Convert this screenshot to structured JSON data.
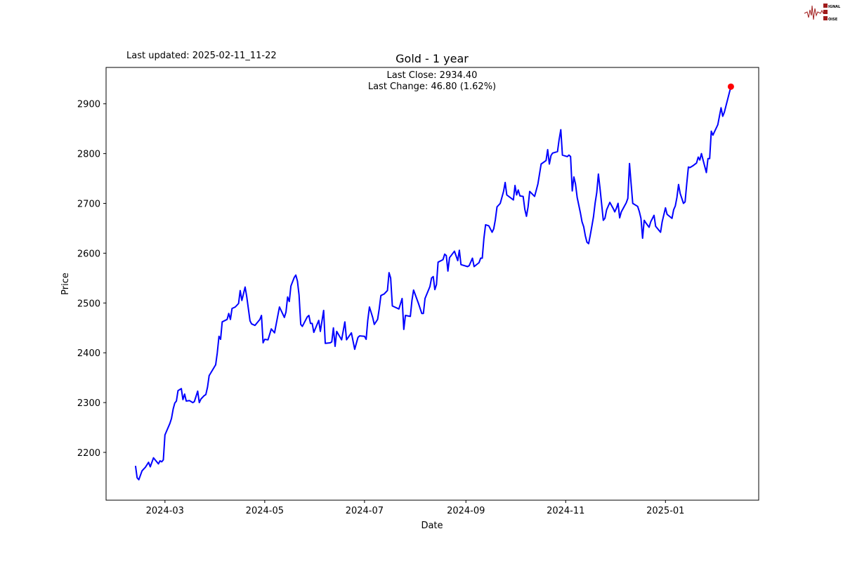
{
  "header": {
    "last_updated": "Last updated: 2025-02-11_11-22",
    "logo_text": "SIGNAL 2 NOISE"
  },
  "chart_data": {
    "type": "line",
    "title": "Gold - 1 year",
    "xlabel": "Date",
    "ylabel": "Price",
    "annotation_close": "Last Close: 2934.40",
    "annotation_change": "Last Change: 46.80 (1.62%)",
    "last_close": 2934.4,
    "line_color": "#0000ff",
    "last_point_color": "#ff0000",
    "grid": false,
    "xlim": [
      "2024-01-25",
      "2025-02-27"
    ],
    "ylim": [
      2104,
      2973
    ],
    "x_ticks": [
      "2024-03",
      "2024-05",
      "2024-07",
      "2024-09",
      "2024-11",
      "2025-01"
    ],
    "y_ticks": [
      2200,
      2300,
      2400,
      2500,
      2600,
      2700,
      2800,
      2900
    ],
    "points": [
      [
        "2024-02-12",
        2173
      ],
      [
        "2024-02-13",
        2149
      ],
      [
        "2024-02-14",
        2145
      ],
      [
        "2024-02-16",
        2163
      ],
      [
        "2024-02-18",
        2170
      ],
      [
        "2024-02-20",
        2180
      ],
      [
        "2024-02-21",
        2171
      ],
      [
        "2024-02-23",
        2189
      ],
      [
        "2024-02-26",
        2177
      ],
      [
        "2024-02-27",
        2183
      ],
      [
        "2024-02-28",
        2181
      ],
      [
        "2024-02-29",
        2185
      ],
      [
        "2024-03-01",
        2235
      ],
      [
        "2024-03-04",
        2258
      ],
      [
        "2024-03-05",
        2268
      ],
      [
        "2024-03-06",
        2287
      ],
      [
        "2024-03-07",
        2299
      ],
      [
        "2024-03-08",
        2303
      ],
      [
        "2024-03-09",
        2324
      ],
      [
        "2024-03-11",
        2328
      ],
      [
        "2024-03-12",
        2306
      ],
      [
        "2024-03-13",
        2317
      ],
      [
        "2024-03-14",
        2303
      ],
      [
        "2024-03-16",
        2304
      ],
      [
        "2024-03-18",
        2300
      ],
      [
        "2024-03-19",
        2302
      ],
      [
        "2024-03-21",
        2323
      ],
      [
        "2024-03-22",
        2300
      ],
      [
        "2024-03-23",
        2307
      ],
      [
        "2024-03-25",
        2314
      ],
      [
        "2024-03-26",
        2316
      ],
      [
        "2024-03-27",
        2331
      ],
      [
        "2024-03-28",
        2354
      ],
      [
        "2024-04-01",
        2376
      ],
      [
        "2024-04-02",
        2400
      ],
      [
        "2024-04-03",
        2433
      ],
      [
        "2024-04-04",
        2427
      ],
      [
        "2024-04-05",
        2462
      ],
      [
        "2024-04-08",
        2467
      ],
      [
        "2024-04-09",
        2479
      ],
      [
        "2024-04-10",
        2467
      ],
      [
        "2024-04-11",
        2489
      ],
      [
        "2024-04-13",
        2492
      ],
      [
        "2024-04-15",
        2499
      ],
      [
        "2024-04-16",
        2525
      ],
      [
        "2024-04-17",
        2505
      ],
      [
        "2024-04-19",
        2532
      ],
      [
        "2024-04-20",
        2513
      ],
      [
        "2024-04-22",
        2464
      ],
      [
        "2024-04-23",
        2458
      ],
      [
        "2024-04-25",
        2455
      ],
      [
        "2024-04-28",
        2467
      ],
      [
        "2024-04-29",
        2475
      ],
      [
        "2024-04-30",
        2420
      ],
      [
        "2024-05-01",
        2427
      ],
      [
        "2024-05-03",
        2426
      ],
      [
        "2024-05-05",
        2448
      ],
      [
        "2024-05-07",
        2440
      ],
      [
        "2024-05-10",
        2492
      ],
      [
        "2024-05-13",
        2471
      ],
      [
        "2024-05-14",
        2482
      ],
      [
        "2024-05-15",
        2512
      ],
      [
        "2024-05-16",
        2503
      ],
      [
        "2024-05-17",
        2534
      ],
      [
        "2024-05-19",
        2551
      ],
      [
        "2024-05-20",
        2556
      ],
      [
        "2024-05-21",
        2544
      ],
      [
        "2024-05-22",
        2516
      ],
      [
        "2024-05-23",
        2457
      ],
      [
        "2024-05-24",
        2453
      ],
      [
        "2024-05-27",
        2472
      ],
      [
        "2024-05-28",
        2475
      ],
      [
        "2024-05-29",
        2459
      ],
      [
        "2024-05-30",
        2459
      ],
      [
        "2024-05-31",
        2441
      ],
      [
        "2024-06-03",
        2465
      ],
      [
        "2024-06-04",
        2443
      ],
      [
        "2024-06-06",
        2485
      ],
      [
        "2024-06-07",
        2419
      ],
      [
        "2024-06-10",
        2420
      ],
      [
        "2024-06-11",
        2422
      ],
      [
        "2024-06-12",
        2450
      ],
      [
        "2024-06-13",
        2413
      ],
      [
        "2024-06-14",
        2443
      ],
      [
        "2024-06-17",
        2426
      ],
      [
        "2024-06-19",
        2462
      ],
      [
        "2024-06-20",
        2426
      ],
      [
        "2024-06-23",
        2440
      ],
      [
        "2024-06-25",
        2407
      ],
      [
        "2024-06-27",
        2431
      ],
      [
        "2024-06-28",
        2434
      ],
      [
        "2024-07-01",
        2433
      ],
      [
        "2024-07-02",
        2427
      ],
      [
        "2024-07-03",
        2465
      ],
      [
        "2024-07-04",
        2492
      ],
      [
        "2024-07-06",
        2471
      ],
      [
        "2024-07-07",
        2457
      ],
      [
        "2024-07-09",
        2467
      ],
      [
        "2024-07-10",
        2488
      ],
      [
        "2024-07-11",
        2515
      ],
      [
        "2024-07-13",
        2518
      ],
      [
        "2024-07-15",
        2525
      ],
      [
        "2024-07-16",
        2561
      ],
      [
        "2024-07-17",
        2550
      ],
      [
        "2024-07-18",
        2494
      ],
      [
        "2024-07-22",
        2488
      ],
      [
        "2024-07-24",
        2509
      ],
      [
        "2024-07-25",
        2447
      ],
      [
        "2024-07-26",
        2475
      ],
      [
        "2024-07-29",
        2473
      ],
      [
        "2024-07-30",
        2505
      ],
      [
        "2024-07-31",
        2526
      ],
      [
        "2024-08-03",
        2499
      ],
      [
        "2024-08-05",
        2479
      ],
      [
        "2024-08-06",
        2479
      ],
      [
        "2024-08-07",
        2509
      ],
      [
        "2024-08-10",
        2533
      ],
      [
        "2024-08-11",
        2550
      ],
      [
        "2024-08-12",
        2553
      ],
      [
        "2024-08-13",
        2527
      ],
      [
        "2024-08-14",
        2537
      ],
      [
        "2024-08-15",
        2582
      ],
      [
        "2024-08-18",
        2587
      ],
      [
        "2024-08-19",
        2598
      ],
      [
        "2024-08-20",
        2595
      ],
      [
        "2024-08-21",
        2564
      ],
      [
        "2024-08-22",
        2591
      ],
      [
        "2024-08-25",
        2604
      ],
      [
        "2024-08-27",
        2585
      ],
      [
        "2024-08-28",
        2606
      ],
      [
        "2024-08-29",
        2577
      ],
      [
        "2024-09-02",
        2573
      ],
      [
        "2024-09-03",
        2575
      ],
      [
        "2024-09-05",
        2590
      ],
      [
        "2024-09-06",
        2573
      ],
      [
        "2024-09-09",
        2581
      ],
      [
        "2024-09-10",
        2590
      ],
      [
        "2024-09-11",
        2590
      ],
      [
        "2024-09-12",
        2629
      ],
      [
        "2024-09-13",
        2657
      ],
      [
        "2024-09-15",
        2655
      ],
      [
        "2024-09-17",
        2642
      ],
      [
        "2024-09-18",
        2649
      ],
      [
        "2024-09-19",
        2667
      ],
      [
        "2024-09-20",
        2693
      ],
      [
        "2024-09-22",
        2700
      ],
      [
        "2024-09-24",
        2724
      ],
      [
        "2024-09-25",
        2742
      ],
      [
        "2024-09-26",
        2717
      ],
      [
        "2024-09-30",
        2707
      ],
      [
        "2024-10-01",
        2736
      ],
      [
        "2024-10-02",
        2717
      ],
      [
        "2024-10-03",
        2727
      ],
      [
        "2024-10-04",
        2715
      ],
      [
        "2024-10-06",
        2714
      ],
      [
        "2024-10-07",
        2688
      ],
      [
        "2024-10-08",
        2674
      ],
      [
        "2024-10-09",
        2693
      ],
      [
        "2024-10-10",
        2724
      ],
      [
        "2024-10-13",
        2714
      ],
      [
        "2024-10-15",
        2739
      ],
      [
        "2024-10-16",
        2759
      ],
      [
        "2024-10-17",
        2779
      ],
      [
        "2024-10-20",
        2786
      ],
      [
        "2024-10-21",
        2808
      ],
      [
        "2024-10-22",
        2779
      ],
      [
        "2024-10-23",
        2796
      ],
      [
        "2024-10-24",
        2801
      ],
      [
        "2024-10-27",
        2804
      ],
      [
        "2024-10-28",
        2828
      ],
      [
        "2024-10-29",
        2848
      ],
      [
        "2024-10-30",
        2797
      ],
      [
        "2024-11-02",
        2794
      ],
      [
        "2024-11-03",
        2797
      ],
      [
        "2024-11-04",
        2794
      ],
      [
        "2024-11-05",
        2725
      ],
      [
        "2024-11-06",
        2753
      ],
      [
        "2024-11-07",
        2739
      ],
      [
        "2024-11-08",
        2712
      ],
      [
        "2024-11-10",
        2681
      ],
      [
        "2024-11-11",
        2663
      ],
      [
        "2024-11-12",
        2653
      ],
      [
        "2024-11-13",
        2635
      ],
      [
        "2024-11-14",
        2622
      ],
      [
        "2024-11-15",
        2619
      ],
      [
        "2024-11-16",
        2636
      ],
      [
        "2024-11-17",
        2654
      ],
      [
        "2024-11-18",
        2673
      ],
      [
        "2024-11-19",
        2701
      ],
      [
        "2024-11-20",
        2722
      ],
      [
        "2024-11-21",
        2759
      ],
      [
        "2024-11-22",
        2729
      ],
      [
        "2024-11-24",
        2666
      ],
      [
        "2024-11-25",
        2670
      ],
      [
        "2024-11-26",
        2687
      ],
      [
        "2024-11-28",
        2702
      ],
      [
        "2024-11-30",
        2690
      ],
      [
        "2024-12-01",
        2683
      ],
      [
        "2024-12-02",
        2690
      ],
      [
        "2024-12-03",
        2700
      ],
      [
        "2024-12-04",
        2671
      ],
      [
        "2024-12-05",
        2683
      ],
      [
        "2024-12-08",
        2701
      ],
      [
        "2024-12-09",
        2710
      ],
      [
        "2024-12-10",
        2780
      ],
      [
        "2024-12-11",
        2739
      ],
      [
        "2024-12-12",
        2700
      ],
      [
        "2024-12-15",
        2694
      ],
      [
        "2024-12-16",
        2684
      ],
      [
        "2024-12-17",
        2670
      ],
      [
        "2024-12-18",
        2630
      ],
      [
        "2024-12-19",
        2666
      ],
      [
        "2024-12-20",
        2661
      ],
      [
        "2024-12-22",
        2652
      ],
      [
        "2024-12-23",
        2663
      ],
      [
        "2024-12-25",
        2676
      ],
      [
        "2024-12-26",
        2654
      ],
      [
        "2024-12-29",
        2642
      ],
      [
        "2024-12-30",
        2663
      ],
      [
        "2025-01-01",
        2691
      ],
      [
        "2025-01-02",
        2678
      ],
      [
        "2025-01-05",
        2670
      ],
      [
        "2025-01-06",
        2687
      ],
      [
        "2025-01-07",
        2695
      ],
      [
        "2025-01-08",
        2712
      ],
      [
        "2025-01-09",
        2738
      ],
      [
        "2025-01-10",
        2720
      ],
      [
        "2025-01-12",
        2700
      ],
      [
        "2025-01-13",
        2703
      ],
      [
        "2025-01-14",
        2740
      ],
      [
        "2025-01-15",
        2773
      ],
      [
        "2025-01-16",
        2772
      ],
      [
        "2025-01-18",
        2776
      ],
      [
        "2025-01-20",
        2781
      ],
      [
        "2025-01-21",
        2793
      ],
      [
        "2025-01-22",
        2787
      ],
      [
        "2025-01-23",
        2800
      ],
      [
        "2025-01-24",
        2787
      ],
      [
        "2025-01-26",
        2762
      ],
      [
        "2025-01-27",
        2790
      ],
      [
        "2025-01-28",
        2790
      ],
      [
        "2025-01-29",
        2845
      ],
      [
        "2025-01-30",
        2837
      ],
      [
        "2025-01-31",
        2844
      ],
      [
        "2025-02-02",
        2858
      ],
      [
        "2025-02-04",
        2892
      ],
      [
        "2025-02-05",
        2875
      ],
      [
        "2025-02-06",
        2883
      ],
      [
        "2025-02-10",
        2934.4
      ]
    ]
  }
}
